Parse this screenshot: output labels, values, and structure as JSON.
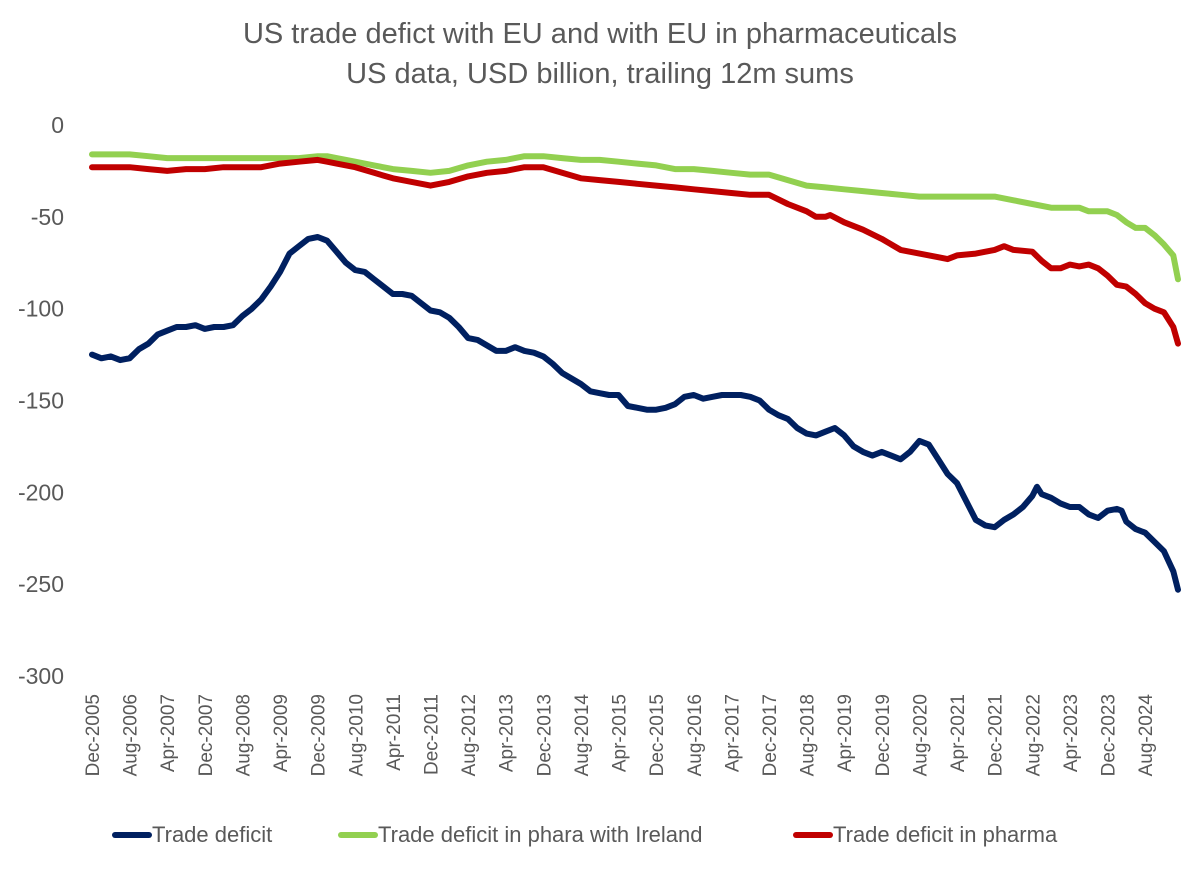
{
  "chart_data": {
    "type": "line",
    "title": "US trade defict with EU and with EU in pharmaceuticals",
    "subtitle": "US data, USD billion, trailing 12m sums",
    "xlabel": "",
    "ylabel": "",
    "ylim": [
      -300,
      0
    ],
    "yticks": [
      0,
      -50,
      -100,
      -150,
      -200,
      -250,
      -300
    ],
    "x_start": "Dec-2005",
    "x_end": "Mar-2025",
    "x_tick_labels": [
      "Dec-2005",
      "Aug-2006",
      "Apr-2007",
      "Dec-2007",
      "Aug-2008",
      "Apr-2009",
      "Dec-2009",
      "Aug-2010",
      "Apr-2011",
      "Dec-2011",
      "Aug-2012",
      "Apr-2013",
      "Dec-2013",
      "Aug-2014",
      "Apr-2015",
      "Dec-2015",
      "Aug-2016",
      "Apr-2017",
      "Dec-2017",
      "Aug-2018",
      "Apr-2019",
      "Dec-2019",
      "Aug-2020",
      "Apr-2021",
      "Dec-2021",
      "Aug-2022",
      "Apr-2023",
      "Dec-2023",
      "Aug-2024"
    ],
    "grid": false,
    "legend_position": "bottom",
    "series": [
      {
        "name": "Trade deficit",
        "color": "#002060",
        "points": [
          [
            "Dec-2005",
            -125
          ],
          [
            "Feb-2006",
            -127
          ],
          [
            "Apr-2006",
            -126
          ],
          [
            "Jun-2006",
            -128
          ],
          [
            "Aug-2006",
            -127
          ],
          [
            "Oct-2006",
            -122
          ],
          [
            "Dec-2006",
            -119
          ],
          [
            "Feb-2007",
            -114
          ],
          [
            "Apr-2007",
            -112
          ],
          [
            "Jun-2007",
            -110
          ],
          [
            "Aug-2007",
            -110
          ],
          [
            "Oct-2007",
            -109
          ],
          [
            "Dec-2007",
            -111
          ],
          [
            "Feb-2008",
            -110
          ],
          [
            "Apr-2008",
            -110
          ],
          [
            "Jun-2008",
            -109
          ],
          [
            "Aug-2008",
            -104
          ],
          [
            "Oct-2008",
            -100
          ],
          [
            "Dec-2008",
            -95
          ],
          [
            "Feb-2009",
            -88
          ],
          [
            "Apr-2009",
            -80
          ],
          [
            "Jun-2009",
            -70
          ],
          [
            "Aug-2009",
            -66
          ],
          [
            "Oct-2009",
            -62
          ],
          [
            "Dec-2009",
            -61
          ],
          [
            "Feb-2010",
            -63
          ],
          [
            "Apr-2010",
            -69
          ],
          [
            "Jun-2010",
            -75
          ],
          [
            "Aug-2010",
            -79
          ],
          [
            "Oct-2010",
            -80
          ],
          [
            "Dec-2010",
            -84
          ],
          [
            "Feb-2011",
            -88
          ],
          [
            "Apr-2011",
            -92
          ],
          [
            "Jun-2011",
            -92
          ],
          [
            "Aug-2011",
            -93
          ],
          [
            "Oct-2011",
            -97
          ],
          [
            "Dec-2011",
            -101
          ],
          [
            "Feb-2012",
            -102
          ],
          [
            "Apr-2012",
            -105
          ],
          [
            "Jun-2012",
            -110
          ],
          [
            "Aug-2012",
            -116
          ],
          [
            "Oct-2012",
            -117
          ],
          [
            "Dec-2012",
            -120
          ],
          [
            "Feb-2013",
            -123
          ],
          [
            "Apr-2013",
            -123
          ],
          [
            "Jun-2013",
            -121
          ],
          [
            "Aug-2013",
            -123
          ],
          [
            "Oct-2013",
            -124
          ],
          [
            "Dec-2013",
            -126
          ],
          [
            "Feb-2014",
            -130
          ],
          [
            "Apr-2014",
            -135
          ],
          [
            "Jun-2014",
            -138
          ],
          [
            "Aug-2014",
            -141
          ],
          [
            "Oct-2014",
            -145
          ],
          [
            "Dec-2014",
            -146
          ],
          [
            "Feb-2015",
            -147
          ],
          [
            "Apr-2015",
            -147
          ],
          [
            "Jun-2015",
            -153
          ],
          [
            "Aug-2015",
            -154
          ],
          [
            "Oct-2015",
            -155
          ],
          [
            "Dec-2015",
            -155
          ],
          [
            "Feb-2016",
            -154
          ],
          [
            "Apr-2016",
            -152
          ],
          [
            "Jun-2016",
            -148
          ],
          [
            "Aug-2016",
            -147
          ],
          [
            "Oct-2016",
            -149
          ],
          [
            "Dec-2016",
            -148
          ],
          [
            "Feb-2017",
            -147
          ],
          [
            "Apr-2017",
            -147
          ],
          [
            "Jun-2017",
            -147
          ],
          [
            "Aug-2017",
            -148
          ],
          [
            "Oct-2017",
            -150
          ],
          [
            "Dec-2017",
            -155
          ],
          [
            "Feb-2018",
            -158
          ],
          [
            "Apr-2018",
            -160
          ],
          [
            "Jun-2018",
            -165
          ],
          [
            "Aug-2018",
            -168
          ],
          [
            "Oct-2018",
            -169
          ],
          [
            "Dec-2018",
            -167
          ],
          [
            "Feb-2019",
            -165
          ],
          [
            "Apr-2019",
            -169
          ],
          [
            "Jun-2019",
            -175
          ],
          [
            "Aug-2019",
            -178
          ],
          [
            "Oct-2019",
            -180
          ],
          [
            "Dec-2019",
            -178
          ],
          [
            "Feb-2020",
            -180
          ],
          [
            "Apr-2020",
            -182
          ],
          [
            "Jun-2020",
            -178
          ],
          [
            "Aug-2020",
            -172
          ],
          [
            "Oct-2020",
            -174
          ],
          [
            "Dec-2020",
            -182
          ],
          [
            "Feb-2021",
            -190
          ],
          [
            "Apr-2021",
            -195
          ],
          [
            "Jun-2021",
            -205
          ],
          [
            "Aug-2021",
            -215
          ],
          [
            "Oct-2021",
            -218
          ],
          [
            "Dec-2021",
            -219
          ],
          [
            "Feb-2022",
            -215
          ],
          [
            "Apr-2022",
            -212
          ],
          [
            "Jun-2022",
            -208
          ],
          [
            "Aug-2022",
            -202
          ],
          [
            "Sep-2022",
            -197
          ],
          [
            "Oct-2022",
            -201
          ],
          [
            "Dec-2022",
            -203
          ],
          [
            "Feb-2023",
            -206
          ],
          [
            "Apr-2023",
            -208
          ],
          [
            "Jun-2023",
            -208
          ],
          [
            "Aug-2023",
            -212
          ],
          [
            "Oct-2023",
            -214
          ],
          [
            "Dec-2023",
            -210
          ],
          [
            "Feb-2024",
            -209
          ],
          [
            "Mar-2024",
            -210
          ],
          [
            "Apr-2024",
            -216
          ],
          [
            "Jun-2024",
            -220
          ],
          [
            "Aug-2024",
            -222
          ],
          [
            "Oct-2024",
            -227
          ],
          [
            "Dec-2024",
            -232
          ],
          [
            "Feb-2025",
            -243
          ],
          [
            "Mar-2025",
            -253
          ]
        ]
      },
      {
        "name": "Trade deficit in phara with Ireland",
        "color": "#92D050",
        "points": [
          [
            "Dec-2005",
            -16
          ],
          [
            "Apr-2006",
            -16
          ],
          [
            "Aug-2006",
            -16
          ],
          [
            "Dec-2006",
            -17
          ],
          [
            "Apr-2007",
            -18
          ],
          [
            "Aug-2007",
            -18
          ],
          [
            "Dec-2007",
            -18
          ],
          [
            "Apr-2008",
            -18
          ],
          [
            "Aug-2008",
            -18
          ],
          [
            "Dec-2008",
            -18
          ],
          [
            "Apr-2009",
            -18
          ],
          [
            "Aug-2009",
            -18
          ],
          [
            "Dec-2009",
            -17
          ],
          [
            "Feb-2010",
            -17
          ],
          [
            "Apr-2010",
            -18
          ],
          [
            "Aug-2010",
            -20
          ],
          [
            "Dec-2010",
            -22
          ],
          [
            "Apr-2011",
            -24
          ],
          [
            "Aug-2011",
            -25
          ],
          [
            "Dec-2011",
            -26
          ],
          [
            "Apr-2012",
            -25
          ],
          [
            "Aug-2012",
            -22
          ],
          [
            "Dec-2012",
            -20
          ],
          [
            "Apr-2013",
            -19
          ],
          [
            "Aug-2013",
            -17
          ],
          [
            "Dec-2013",
            -17
          ],
          [
            "Apr-2014",
            -18
          ],
          [
            "Aug-2014",
            -19
          ],
          [
            "Dec-2014",
            -19
          ],
          [
            "Apr-2015",
            -20
          ],
          [
            "Aug-2015",
            -21
          ],
          [
            "Dec-2015",
            -22
          ],
          [
            "Apr-2016",
            -24
          ],
          [
            "Aug-2016",
            -24
          ],
          [
            "Dec-2016",
            -25
          ],
          [
            "Apr-2017",
            -26
          ],
          [
            "Aug-2017",
            -27
          ],
          [
            "Dec-2017",
            -27
          ],
          [
            "Apr-2018",
            -30
          ],
          [
            "Aug-2018",
            -33
          ],
          [
            "Dec-2018",
            -34
          ],
          [
            "Apr-2019",
            -35
          ],
          [
            "Aug-2019",
            -36
          ],
          [
            "Dec-2019",
            -37
          ],
          [
            "Apr-2020",
            -38
          ],
          [
            "Aug-2020",
            -39
          ],
          [
            "Dec-2020",
            -39
          ],
          [
            "Apr-2021",
            -39
          ],
          [
            "Aug-2021",
            -39
          ],
          [
            "Dec-2021",
            -39
          ],
          [
            "Apr-2022",
            -41
          ],
          [
            "Aug-2022",
            -43
          ],
          [
            "Dec-2022",
            -45
          ],
          [
            "Apr-2023",
            -45
          ],
          [
            "Jun-2023",
            -45
          ],
          [
            "Aug-2023",
            -47
          ],
          [
            "Dec-2023",
            -47
          ],
          [
            "Feb-2024",
            -49
          ],
          [
            "Apr-2024",
            -53
          ],
          [
            "Jun-2024",
            -56
          ],
          [
            "Aug-2024",
            -56
          ],
          [
            "Oct-2024",
            -60
          ],
          [
            "Dec-2024",
            -65
          ],
          [
            "Feb-2025",
            -71
          ],
          [
            "Mar-2025",
            -84
          ]
        ]
      },
      {
        "name": "Trade deficit in pharma",
        "color": "#C00000",
        "points": [
          [
            "Dec-2005",
            -23
          ],
          [
            "Apr-2006",
            -23
          ],
          [
            "Aug-2006",
            -23
          ],
          [
            "Dec-2006",
            -24
          ],
          [
            "Apr-2007",
            -25
          ],
          [
            "Aug-2007",
            -24
          ],
          [
            "Dec-2007",
            -24
          ],
          [
            "Apr-2008",
            -23
          ],
          [
            "Aug-2008",
            -23
          ],
          [
            "Dec-2008",
            -23
          ],
          [
            "Apr-2009",
            -21
          ],
          [
            "Aug-2009",
            -20
          ],
          [
            "Dec-2009",
            -19
          ],
          [
            "Feb-2010",
            -20
          ],
          [
            "Apr-2010",
            -21
          ],
          [
            "Aug-2010",
            -23
          ],
          [
            "Dec-2010",
            -26
          ],
          [
            "Apr-2011",
            -29
          ],
          [
            "Aug-2011",
            -31
          ],
          [
            "Dec-2011",
            -33
          ],
          [
            "Apr-2012",
            -31
          ],
          [
            "Aug-2012",
            -28
          ],
          [
            "Dec-2012",
            -26
          ],
          [
            "Apr-2013",
            -25
          ],
          [
            "Aug-2013",
            -23
          ],
          [
            "Dec-2013",
            -23
          ],
          [
            "Apr-2014",
            -26
          ],
          [
            "Aug-2014",
            -29
          ],
          [
            "Dec-2014",
            -30
          ],
          [
            "Apr-2015",
            -31
          ],
          [
            "Aug-2015",
            -32
          ],
          [
            "Dec-2015",
            -33
          ],
          [
            "Apr-2016",
            -34
          ],
          [
            "Aug-2016",
            -35
          ],
          [
            "Dec-2016",
            -36
          ],
          [
            "Apr-2017",
            -37
          ],
          [
            "Aug-2017",
            -38
          ],
          [
            "Dec-2017",
            -38
          ],
          [
            "Apr-2018",
            -43
          ],
          [
            "Aug-2018",
            -47
          ],
          [
            "Oct-2018",
            -50
          ],
          [
            "Dec-2018",
            -50
          ],
          [
            "Jan-2019",
            -49
          ],
          [
            "Apr-2019",
            -53
          ],
          [
            "Aug-2019",
            -57
          ],
          [
            "Dec-2019",
            -62
          ],
          [
            "Apr-2020",
            -68
          ],
          [
            "Aug-2020",
            -70
          ],
          [
            "Dec-2020",
            -72
          ],
          [
            "Feb-2021",
            -73
          ],
          [
            "Apr-2021",
            -71
          ],
          [
            "Aug-2021",
            -70
          ],
          [
            "Dec-2021",
            -68
          ],
          [
            "Feb-2022",
            -66
          ],
          [
            "Apr-2022",
            -68
          ],
          [
            "Aug-2022",
            -69
          ],
          [
            "Oct-2022",
            -74
          ],
          [
            "Dec-2022",
            -78
          ],
          [
            "Feb-2023",
            -78
          ],
          [
            "Apr-2023",
            -76
          ],
          [
            "Jun-2023",
            -77
          ],
          [
            "Aug-2023",
            -76
          ],
          [
            "Oct-2023",
            -78
          ],
          [
            "Dec-2023",
            -82
          ],
          [
            "Feb-2024",
            -87
          ],
          [
            "Apr-2024",
            -88
          ],
          [
            "Jun-2024",
            -92
          ],
          [
            "Aug-2024",
            -97
          ],
          [
            "Oct-2024",
            -100
          ],
          [
            "Dec-2024",
            -102
          ],
          [
            "Feb-2025",
            -110
          ],
          [
            "Mar-2025",
            -119
          ]
        ]
      }
    ]
  }
}
